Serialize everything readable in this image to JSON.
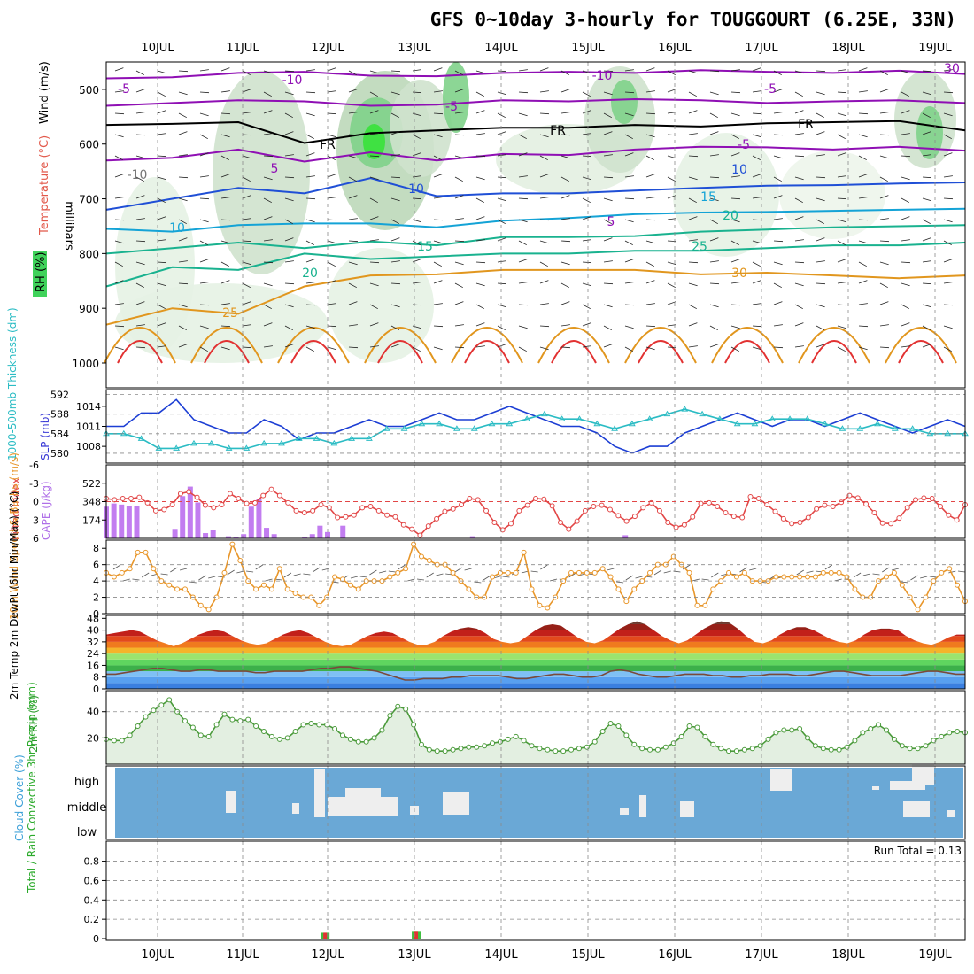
{
  "title": "GFS 0~10day 3-hourly for TOUGGOURT (6.25E, 33N)",
  "colors": {
    "purple": "#8f0fb4",
    "black": "#000000",
    "blue": "#1f4fd6",
    "cyan": "#14a3d6",
    "teal": "#19b28f",
    "orange": "#e1961e",
    "red": "#e23232",
    "rh_green": "#3fd25a",
    "cloud_blue": "#6aa8d6",
    "lifted_red": "#e24646",
    "cape_purple": "#c27df0",
    "wind_orange": "#e8962a",
    "thick_teal": "#2bbcc4",
    "slp_blue": "#1c3ed4"
  },
  "date_labels": [
    "10JUL",
    "11JUL",
    "12JUL",
    "13JUL",
    "14JUL",
    "15JUL",
    "16JUL",
    "17JUL",
    "18JUL",
    "19JUL"
  ],
  "chart_data": [
    {
      "type": "contour",
      "name": "upper_air",
      "ylabel_parts": [
        "RH (%)",
        "Temperature (°C)",
        "Wind (m/s)"
      ],
      "yaxis_title": "millibars",
      "yticks": [
        500,
        600,
        700,
        800,
        900,
        1000
      ],
      "ylim": [
        450,
        1000
      ],
      "contour_labels": [
        "-10",
        "-10",
        "-5",
        "-5",
        "-5",
        "5",
        "-5",
        "5",
        "FR",
        "FR",
        "FR",
        "10",
        "10",
        "10",
        "15",
        "15",
        "20",
        "20",
        "25",
        "25",
        "30",
        "30",
        "-10"
      ],
      "isotherms": [
        {
          "label": "-10",
          "p": [
            480,
            478,
            470,
            468,
            475,
            476,
            470,
            468,
            470,
            465,
            468,
            470,
            466,
            472
          ]
        },
        {
          "label": "-5",
          "p": [
            530,
            525,
            520,
            522,
            530,
            528,
            520,
            522,
            518,
            520,
            525,
            522,
            520,
            525
          ]
        },
        {
          "label": "FR",
          "p": [
            565,
            563,
            560,
            598,
            580,
            575,
            570,
            570,
            565,
            568,
            562,
            560,
            558,
            575
          ]
        },
        {
          "label": "5",
          "p": [
            630,
            625,
            610,
            632,
            615,
            630,
            618,
            620,
            610,
            605,
            606,
            610,
            605,
            612
          ]
        },
        {
          "label": "10",
          "p": [
            720,
            700,
            680,
            690,
            662,
            695,
            690,
            690,
            685,
            680,
            676,
            675,
            672,
            670
          ]
        },
        {
          "label": "15",
          "p": [
            755,
            760,
            748,
            745,
            745,
            752,
            740,
            735,
            728,
            725,
            724,
            722,
            720,
            718
          ]
        },
        {
          "label": "20",
          "p": [
            800,
            790,
            780,
            790,
            778,
            785,
            770,
            770,
            768,
            760,
            756,
            752,
            750,
            748
          ]
        },
        {
          "label": "25",
          "p": [
            860,
            825,
            830,
            800,
            810,
            805,
            800,
            800,
            795,
            795,
            790,
            785,
            785,
            780
          ]
        },
        {
          "label": "30",
          "p": [
            930,
            900,
            910,
            860,
            840,
            838,
            830,
            830,
            830,
            838,
            835,
            840,
            845,
            840
          ]
        }
      ]
    },
    {
      "type": "line",
      "name": "thickness_slp",
      "ylabel_left": "1000-500mb Thickness (dm)",
      "ylabel_right": "SLP (mb)",
      "yticks_thickness": [
        580,
        584,
        588,
        592
      ],
      "yticks_slp": [
        1008,
        1011,
        1014
      ],
      "series": [
        {
          "name": "SLP",
          "values": [
            1011,
            1011,
            1013,
            1013,
            1015,
            1012,
            1011,
            1010,
            1010,
            1012,
            1011,
            1009,
            1010,
            1010,
            1011,
            1012,
            1011,
            1011,
            1012,
            1013,
            1012,
            1012,
            1013,
            1014,
            1013,
            1012,
            1011,
            1011,
            1010,
            1008,
            1007,
            1008,
            1008,
            1010,
            1011,
            1012,
            1013,
            1012,
            1011,
            1012,
            1012,
            1011,
            1012,
            1013,
            1012,
            1011,
            1010,
            1011,
            1012,
            1011
          ]
        },
        {
          "name": "Thickness",
          "values": [
            584,
            584,
            583,
            581,
            581,
            582,
            582,
            581,
            581,
            582,
            582,
            583,
            583,
            582,
            583,
            583,
            585,
            585,
            586,
            586,
            585,
            585,
            586,
            586,
            587,
            588,
            587,
            587,
            586,
            585,
            586,
            587,
            588,
            589,
            588,
            587,
            586,
            586,
            587,
            587,
            587,
            586,
            585,
            585,
            586,
            585,
            585,
            584,
            584,
            584
          ]
        }
      ]
    },
    {
      "type": "bar_line",
      "name": "lifted_cape",
      "ylabel_left": "Lifted Index",
      "ylabel_right": "CAPE (J/kg)",
      "yticks_lifted": [
        -6,
        -3,
        0,
        3,
        6
      ],
      "yticks_cape": [
        174,
        348,
        522
      ],
      "cape_max": 696,
      "cape_values": [
        300,
        330,
        320,
        310,
        310,
        0,
        0,
        0,
        0,
        90,
        400,
        490,
        340,
        50,
        80,
        0,
        20,
        10,
        40,
        300,
        370,
        100,
        40,
        0,
        0,
        0,
        10,
        40,
        120,
        60,
        0,
        120,
        0,
        0,
        0,
        0,
        0,
        0,
        0,
        0,
        0,
        0,
        0,
        0,
        0,
        0,
        0,
        0,
        20,
        0,
        0,
        0,
        0,
        0,
        0,
        0,
        0,
        0,
        0,
        0,
        0,
        0,
        0,
        0,
        0,
        0,
        0,
        0,
        30,
        0,
        0,
        0,
        0,
        0,
        0,
        0,
        0,
        0,
        0,
        0,
        0,
        0,
        0,
        0,
        0,
        0,
        0,
        0,
        0,
        0,
        0,
        0,
        0,
        0,
        0,
        0,
        0,
        0,
        0,
        0,
        0,
        0,
        0,
        0,
        0,
        0,
        0,
        0,
        0,
        0,
        0,
        0,
        0,
        0,
        0,
        0,
        0,
        0,
        0,
        0,
        0,
        0,
        0,
        0,
        0,
        0,
        0,
        0,
        0,
        0,
        0,
        0,
        0,
        0,
        0,
        0,
        0,
        0,
        0,
        0,
        0,
        0,
        0,
        0,
        0,
        0,
        0,
        0,
        0,
        0,
        0,
        0,
        0,
        0,
        0,
        0,
        0,
        0,
        0,
        0,
        0,
        0,
        0,
        0,
        0,
        0,
        0,
        0,
        0,
        0,
        0,
        0,
        0,
        0,
        0,
        0,
        0,
        0,
        0,
        0,
        0,
        0,
        0,
        0,
        0,
        0,
        0,
        0,
        0,
        0,
        0,
        0,
        0,
        0
      ],
      "lifted_values": [
        -0.5,
        -0.3,
        -0.5,
        -0.5,
        -0.7,
        0.2,
        1.5,
        1.3,
        0.5,
        -1.3,
        -1.6,
        -0.7,
        0.6,
        1,
        0.5,
        -1.3,
        -0.5,
        0.3,
        0.2,
        -1,
        -2,
        -1,
        0.2,
        1.5,
        1.8,
        1.5,
        0.5,
        1,
        2.6,
        2.5,
        2.2,
        1,
        0.8,
        1.5,
        2.2,
        2.5,
        3.8,
        4.5,
        5.5,
        4,
        2.8,
        1.6,
        1.2,
        0.5,
        -0.5,
        -0.3,
        1.5,
        3.4,
        4.6,
        3.6,
        1.5,
        0.6,
        -0.5,
        -0.4,
        0.7,
        3.4,
        4.5,
        3.2,
        1.5,
        0.8,
        0.6,
        1.3,
        2.3,
        3.2,
        2.4,
        1,
        0.2,
        1.5,
        3.4,
        4.2,
        3.8,
        2.5,
        0.3,
        0.2,
        0.8,
        1.8,
        2.4,
        2.6,
        -0.8,
        -0.5,
        0.5,
        1.6,
        2.8,
        3.6,
        3.4,
        2.6,
        1.2,
        0.6,
        0.8,
        0.1,
        -1,
        -0.6,
        0.4,
        1.8,
        3.5,
        3.6,
        2.7,
        1,
        -0.3,
        -0.6,
        -0.5,
        0.8,
        2.2,
        3,
        0.5
      ]
    },
    {
      "type": "line",
      "name": "wind10m",
      "ylabel": "10m Wind Speed & Barbs (m/s)",
      "yticks": [
        0,
        2,
        4,
        6,
        8
      ],
      "series": [
        {
          "name": "speed",
          "values": [
            5,
            4.5,
            5,
            5.5,
            7.5,
            7.5,
            5.5,
            4,
            3.5,
            3,
            3,
            2,
            1,
            0.5,
            2,
            5,
            8.5,
            6.5,
            4,
            3,
            3.5,
            3,
            5.5,
            3,
            2.5,
            2,
            2,
            1,
            2,
            4.5,
            4.2,
            3.5,
            3,
            4,
            4,
            4,
            4.5,
            5,
            5.5,
            8.5,
            7,
            6.5,
            6,
            6,
            5,
            4,
            3,
            2,
            2,
            4.5,
            5,
            5,
            5,
            7.5,
            3,
            1,
            0.7,
            2,
            4,
            5,
            5,
            5,
            5,
            5.5,
            4.5,
            3,
            1.5,
            3,
            4,
            5,
            6,
            6,
            7,
            6,
            5,
            1,
            1,
            3,
            4,
            5,
            4.5,
            5,
            4,
            4,
            4,
            4.5,
            4.5,
            4.5,
            4.5,
            4.5,
            4.5,
            5,
            5,
            5,
            4.5,
            3,
            2,
            2,
            4,
            4.5,
            5,
            3.5,
            2,
            0.5,
            2,
            4,
            5,
            5.5,
            3.5,
            1.5
          ]
        }
      ]
    },
    {
      "type": "area",
      "name": "temp2m",
      "ylabel": "2m Temp 2m DewPt (6hr Min/Max) (°C)",
      "yticks": [
        0,
        8,
        16,
        24,
        32,
        40,
        48
      ],
      "temp_values": [
        37,
        38,
        39,
        40,
        39,
        36,
        33,
        31,
        29,
        31,
        34,
        37,
        39,
        40,
        39,
        36,
        33,
        31,
        30,
        31,
        34,
        37,
        39,
        40,
        38,
        35,
        32,
        30,
        29,
        30,
        33,
        36,
        38,
        39,
        38,
        35,
        32,
        30,
        30,
        32,
        36,
        39,
        41,
        42,
        41,
        38,
        34,
        32,
        31,
        32,
        36,
        40,
        43,
        44,
        43,
        39,
        35,
        32,
        31,
        33,
        37,
        41,
        44,
        46,
        44,
        40,
        36,
        33,
        31,
        33,
        37,
        41,
        44,
        46,
        45,
        41,
        36,
        32,
        31,
        33,
        37,
        40,
        42,
        42,
        40,
        37,
        34,
        32,
        31,
        33,
        37,
        40,
        41,
        41,
        40,
        36,
        33,
        31,
        30,
        32,
        35,
        37,
        37
      ],
      "dewpt_values": [
        10,
        10,
        11,
        12,
        13,
        14,
        14,
        13,
        12,
        12,
        13,
        13,
        12,
        12,
        12,
        12,
        11,
        11,
        12,
        12,
        12,
        12,
        13,
        14,
        14,
        15,
        15,
        14,
        13,
        12,
        10,
        8,
        6,
        6,
        7,
        7,
        7,
        8,
        8,
        9,
        9,
        9,
        9,
        8,
        7,
        7,
        8,
        9,
        10,
        10,
        9,
        8,
        8,
        9,
        12,
        13,
        12,
        10,
        9,
        8,
        8,
        9,
        10,
        10,
        10,
        9,
        9,
        8,
        8,
        9,
        9,
        10,
        10,
        10,
        9,
        9,
        10,
        11,
        12,
        12,
        11,
        10,
        9,
        9,
        9,
        9,
        10,
        11,
        12,
        12,
        11,
        10,
        10
      ]
    },
    {
      "type": "area",
      "name": "rh2m",
      "ylabel": "2m RH (%)",
      "yticks": [
        20,
        40
      ],
      "values": [
        19,
        18,
        18,
        22,
        29,
        36,
        41,
        45,
        49,
        40,
        33,
        28,
        22,
        21,
        30,
        38,
        34,
        33,
        34,
        29,
        25,
        21,
        19,
        20,
        25,
        30,
        31,
        30,
        30,
        27,
        22,
        19,
        17,
        17,
        20,
        26,
        37,
        44,
        42,
        30,
        15,
        11,
        10,
        10,
        11,
        12,
        13,
        13,
        14,
        16,
        17,
        19,
        21,
        18,
        14,
        12,
        11,
        10,
        10,
        11,
        12,
        13,
        17,
        25,
        31,
        29,
        22,
        15,
        12,
        11,
        11,
        13,
        16,
        21,
        29,
        28,
        21,
        15,
        12,
        10,
        10,
        11,
        12,
        14,
        19,
        24,
        26,
        26,
        27,
        20,
        14,
        12,
        11,
        11,
        13,
        18,
        24,
        27,
        30,
        26,
        19,
        14,
        12,
        12,
        14,
        18,
        21,
        24,
        25,
        24
      ]
    },
    {
      "type": "heatmap",
      "name": "cloud_cover",
      "ylabel": "Cloud Cover (%)",
      "level_labels": [
        "high",
        "middle",
        "low"
      ]
    },
    {
      "type": "bar",
      "name": "precip",
      "ylabel": "Total / Rain Convective 3hr Precip (mm)",
      "yticks": [
        0,
        0.2,
        0.4,
        0.6,
        0.8
      ],
      "annotation": "Run Total = 0.13",
      "values": [
        0.06,
        0.07
      ]
    }
  ]
}
